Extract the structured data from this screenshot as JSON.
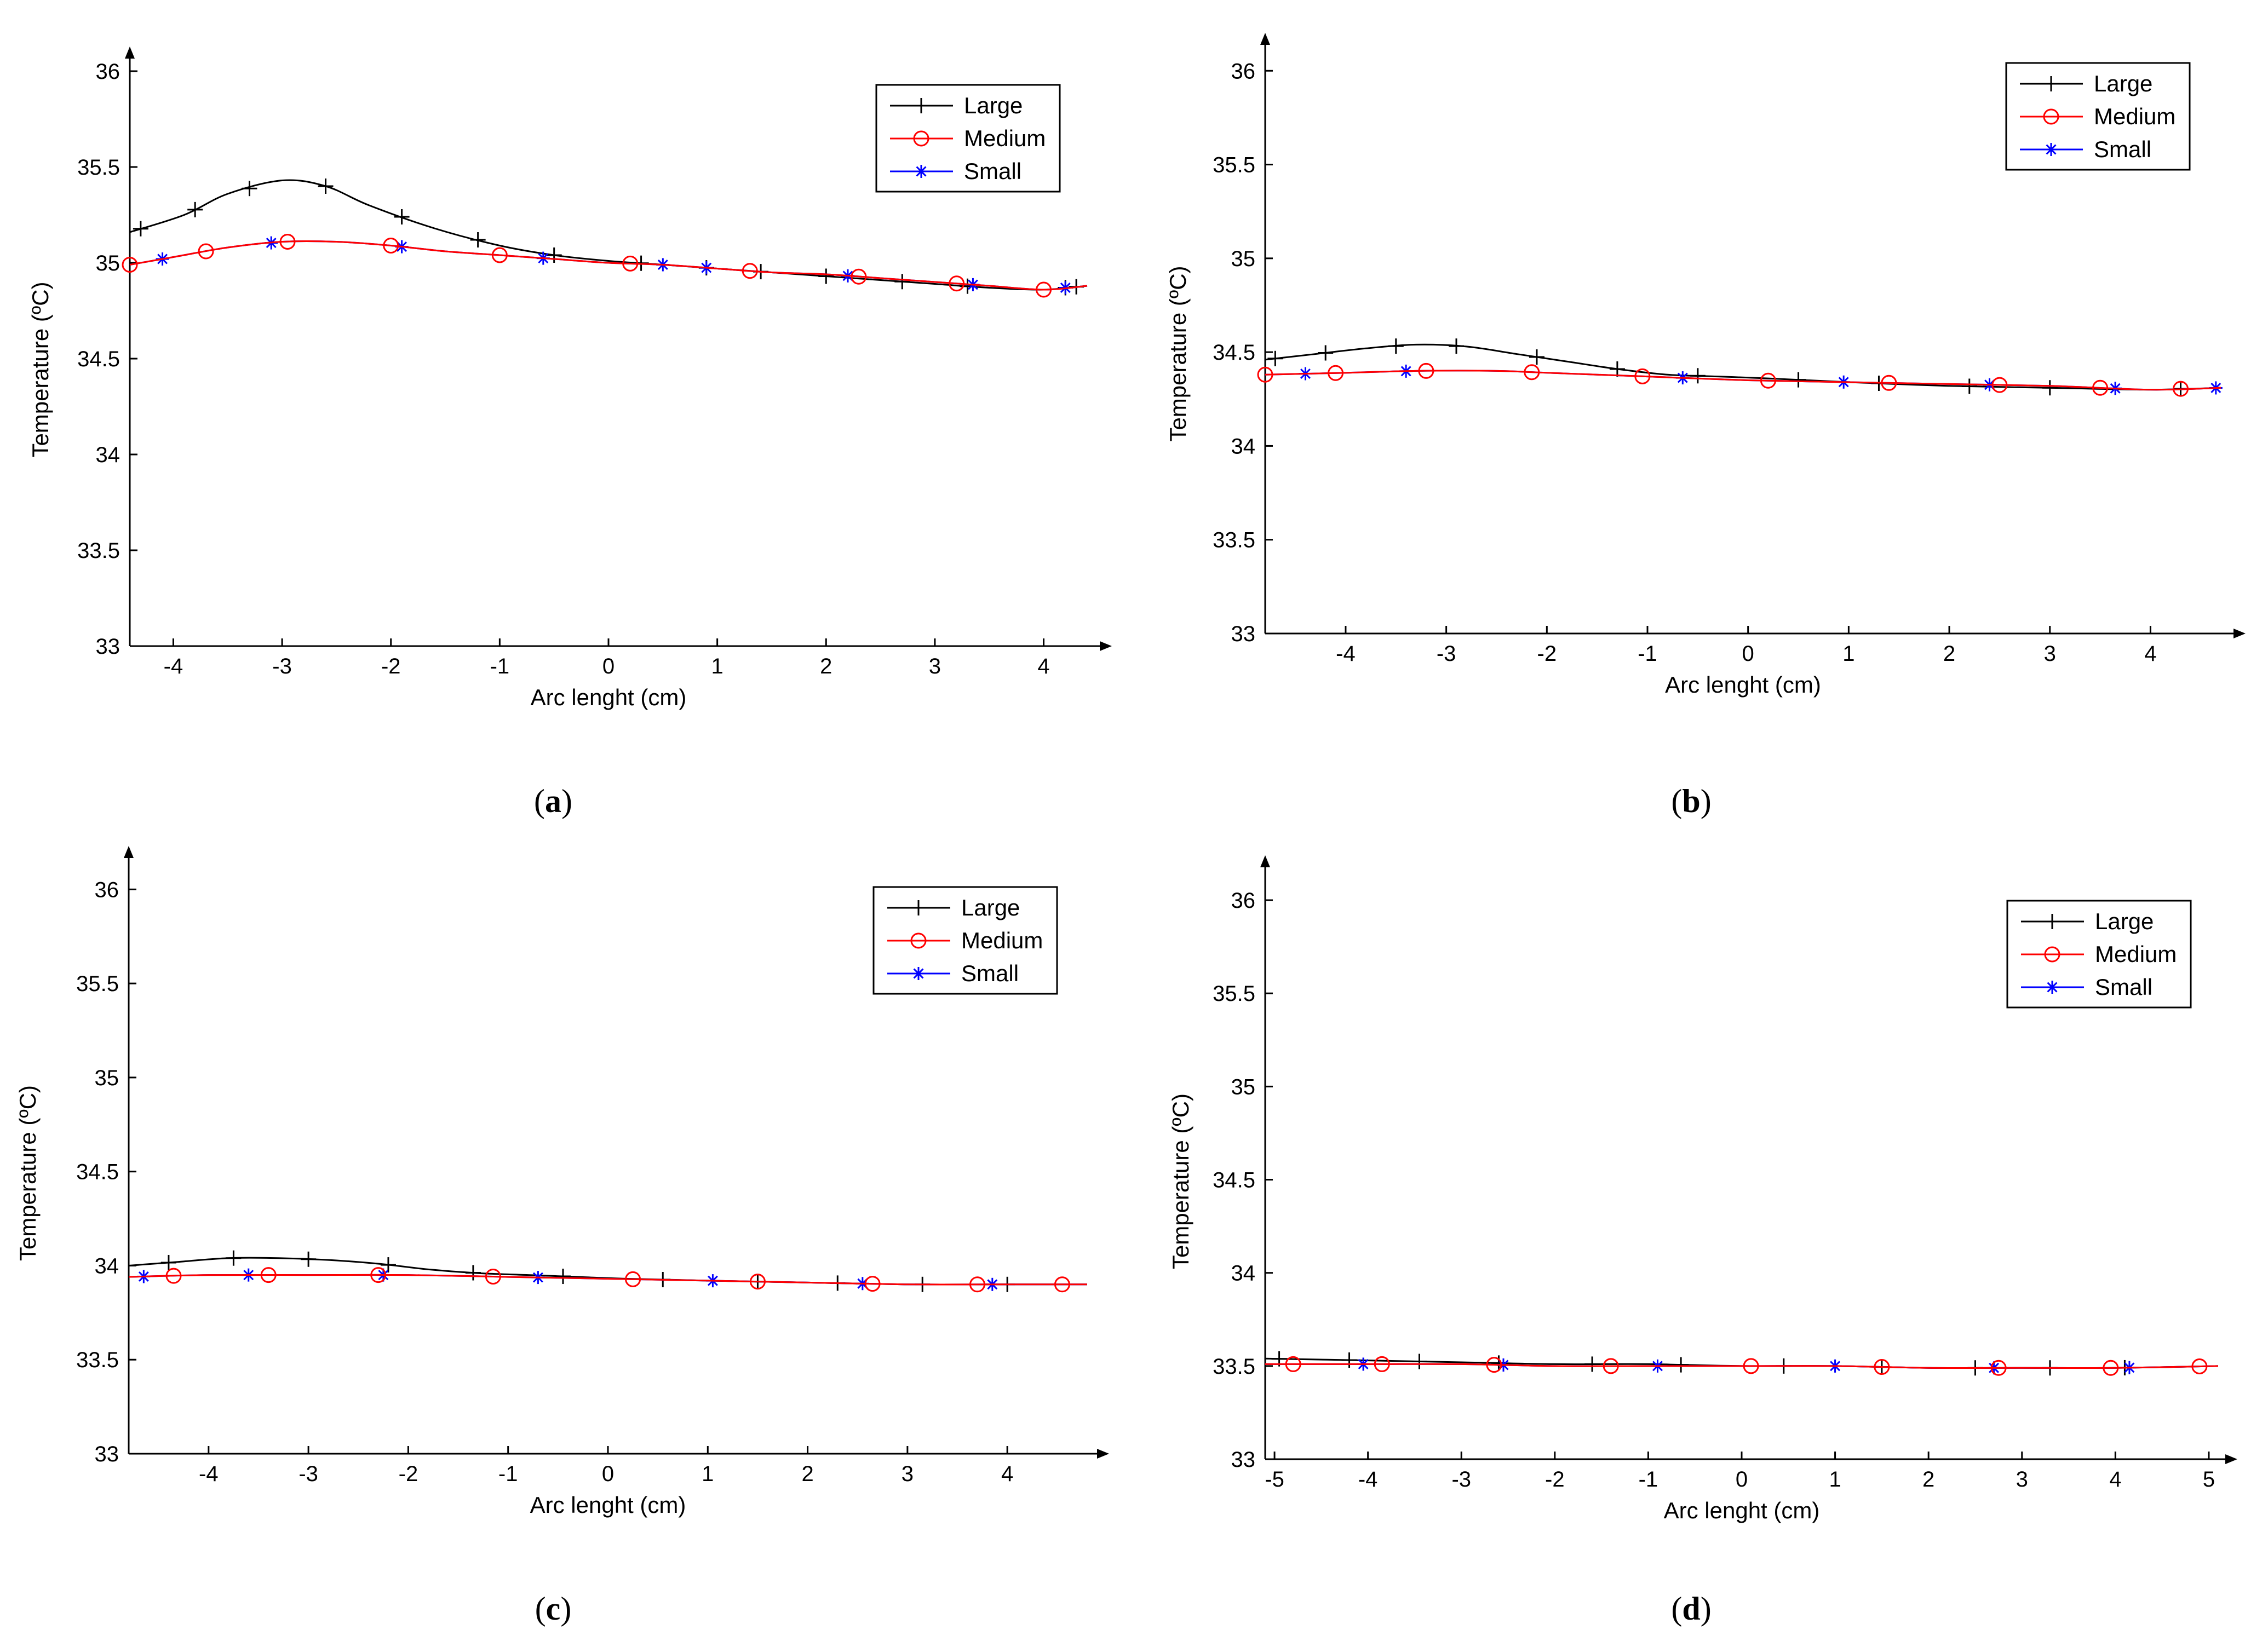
{
  "colors": {
    "Large": "#000000",
    "Medium": "#ff0000",
    "Small": "#0000ff"
  },
  "chart_data": [
    {
      "type": "line",
      "caption_letter": "a",
      "xlabel": "Arc lenght (cm)",
      "ylabel": "Temperature (ºC)",
      "xlim": [
        -4.4,
        4.4
      ],
      "ylim": [
        33,
        36
      ],
      "xticks": [
        -4,
        -3,
        -2,
        -1,
        0,
        1,
        2,
        3,
        4
      ],
      "xtick_labels": [
        "-4",
        "-3",
        "-2",
        "-1",
        "0",
        "1",
        "2",
        "3",
        "4"
      ],
      "yticks": [
        33,
        33.5,
        34,
        34.5,
        35,
        35.5,
        36
      ],
      "ytick_labels": [
        "33",
        "33.5",
        "34",
        "34.5",
        "35",
        "35.5",
        "36"
      ],
      "legend": [
        "Large",
        "Medium",
        "Small"
      ],
      "series": [
        {
          "name": "Large",
          "x": [
            -4.4,
            -3.9,
            -3.5,
            -3.0,
            -2.6,
            -2.2,
            -1.6,
            -1.0,
            -0.5,
            0.0,
            0.5,
            1.0,
            1.5,
            2.0,
            2.5,
            3.0,
            3.5,
            4.0,
            4.4
          ],
          "y": [
            35.16,
            35.25,
            35.36,
            35.43,
            35.4,
            35.3,
            35.18,
            35.09,
            35.04,
            35.01,
            34.99,
            34.97,
            34.95,
            34.93,
            34.91,
            34.89,
            34.87,
            34.86,
            34.88
          ],
          "markers_x": [
            -4.3,
            -3.8,
            -3.3,
            -2.6,
            -1.9,
            -1.2,
            -0.5,
            0.3,
            0.9,
            1.4,
            2.0,
            2.7,
            3.3,
            4.2,
            4.3
          ]
        },
        {
          "name": "Medium",
          "x": [
            -4.4,
            -4.0,
            -3.5,
            -3.0,
            -2.5,
            -2.0,
            -1.5,
            -1.0,
            -0.5,
            0.0,
            0.5,
            1.0,
            1.5,
            2.0,
            2.5,
            3.0,
            3.5,
            4.0,
            4.4
          ],
          "y": [
            34.99,
            35.03,
            35.08,
            35.11,
            35.11,
            35.09,
            35.06,
            35.04,
            35.02,
            35.0,
            34.99,
            34.97,
            34.95,
            34.94,
            34.92,
            34.9,
            34.88,
            34.86,
            34.88
          ],
          "markers_x": [
            -4.4,
            -3.7,
            -2.95,
            -2.0,
            -1.0,
            0.2,
            1.3,
            2.3,
            3.2,
            4.0
          ]
        },
        {
          "name": "Small",
          "x": [
            -4.4,
            -4.0,
            -3.5,
            -3.0,
            -2.5,
            -2.0,
            -1.5,
            -1.0,
            -0.5,
            0.0,
            0.5,
            1.0,
            1.5,
            2.0,
            2.5,
            3.0,
            3.5,
            4.0,
            4.4
          ],
          "y": [
            34.99,
            35.03,
            35.08,
            35.11,
            35.11,
            35.09,
            35.06,
            35.04,
            35.02,
            35.0,
            34.99,
            34.97,
            34.95,
            34.94,
            34.92,
            34.9,
            34.88,
            34.86,
            34.88
          ],
          "markers_x": [
            -4.1,
            -3.1,
            -1.9,
            -0.6,
            0.5,
            0.9,
            2.2,
            3.35,
            4.2
          ]
        }
      ]
    },
    {
      "type": "line",
      "caption_letter": "b",
      "xlabel": "Arc lenght (cm)",
      "ylabel": "Temperature (ºC)",
      "xlim": [
        -4.8,
        4.7
      ],
      "ylim": [
        33,
        36.1
      ],
      "xticks": [
        -4,
        -3,
        -2,
        -1,
        0,
        1,
        2,
        3,
        4
      ],
      "xtick_labels": [
        "-4",
        "-3",
        "-2",
        "-1",
        "0",
        "1",
        "2",
        "3",
        "4"
      ],
      "yticks": [
        33,
        33.5,
        34,
        34.5,
        35,
        35.5,
        36
      ],
      "ytick_labels": [
        "33",
        "33.5",
        "34",
        "34.5",
        "35",
        "35.5",
        "36"
      ],
      "legend": [
        "Large",
        "Medium",
        "Small"
      ],
      "series": [
        {
          "name": "Large",
          "x": [
            -4.8,
            -4.3,
            -3.8,
            -3.3,
            -2.8,
            -2.3,
            -1.8,
            -1.3,
            -0.8,
            -0.3,
            0.2,
            1.0,
            2.0,
            3.0,
            4.0,
            4.7
          ],
          "y": [
            34.46,
            34.49,
            34.52,
            34.54,
            34.53,
            34.49,
            34.45,
            34.41,
            34.38,
            34.37,
            34.36,
            34.34,
            34.32,
            34.31,
            34.3,
            34.31
          ],
          "markers_x": [
            -4.7,
            -4.2,
            -3.5,
            -2.9,
            -2.1,
            -1.3,
            -0.5,
            0.5,
            1.3,
            2.2,
            3.0,
            4.3
          ]
        },
        {
          "name": "Medium",
          "x": [
            -4.8,
            -4.0,
            -3.3,
            -2.5,
            -2.0,
            -1.0,
            0.0,
            1.0,
            2.0,
            3.0,
            4.0,
            4.7
          ],
          "y": [
            34.38,
            34.39,
            34.4,
            34.4,
            34.39,
            34.37,
            34.35,
            34.34,
            34.33,
            34.32,
            34.3,
            34.31
          ],
          "markers_x": [
            -4.8,
            -4.1,
            -3.2,
            -2.15,
            -1.05,
            0.2,
            1.4,
            2.5,
            3.5,
            4.3
          ]
        },
        {
          "name": "Small",
          "x": [
            -4.8,
            -4.0,
            -3.3,
            -2.5,
            -2.0,
            -1.0,
            0.0,
            1.0,
            2.0,
            3.0,
            4.0,
            4.7
          ],
          "y": [
            34.38,
            34.39,
            34.4,
            34.4,
            34.39,
            34.37,
            34.35,
            34.34,
            34.33,
            34.32,
            34.3,
            34.31
          ],
          "markers_x": [
            -4.4,
            -3.4,
            -0.65,
            0.95,
            2.4,
            3.65,
            4.65
          ]
        }
      ]
    },
    {
      "type": "line",
      "caption_letter": "c",
      "xlabel": "Arc lenght (cm)",
      "ylabel": "Temperature (ºC)",
      "xlim": [
        -4.8,
        4.8
      ],
      "ylim": [
        33,
        36.1
      ],
      "xticks": [
        -4,
        -3,
        -2,
        -1,
        0,
        1,
        2,
        3,
        4
      ],
      "xtick_labels": [
        "-4",
        "-3",
        "-2",
        "-1",
        "0",
        "1",
        "2",
        "3",
        "4"
      ],
      "yticks": [
        33,
        33.5,
        34,
        34.5,
        35,
        35.5,
        36
      ],
      "ytick_labels": [
        "33",
        "33.5",
        "34",
        "34.5",
        "35",
        "35.5",
        "36"
      ],
      "legend": [
        "Large",
        "Medium",
        "Small"
      ],
      "series": [
        {
          "name": "Large",
          "x": [
            -4.8,
            -4.3,
            -3.8,
            -3.3,
            -2.8,
            -2.3,
            -1.8,
            -1.3,
            -0.8,
            -0.3,
            0.2,
            1.0,
            2.0,
            3.0,
            4.0,
            4.8
          ],
          "y": [
            34.0,
            34.02,
            34.04,
            34.04,
            34.03,
            34.01,
            33.98,
            33.96,
            33.95,
            33.94,
            33.93,
            33.92,
            33.91,
            33.9,
            33.9,
            33.9
          ],
          "markers_x": [
            -4.4,
            -3.75,
            -3.0,
            -2.2,
            -1.35,
            -0.45,
            0.55,
            1.5,
            2.3,
            3.15,
            4.0
          ]
        },
        {
          "name": "Medium",
          "x": [
            -4.8,
            -4.0,
            -3.0,
            -2.0,
            -1.0,
            0.0,
            1.0,
            2.0,
            3.0,
            4.0,
            4.8
          ],
          "y": [
            33.94,
            33.95,
            33.95,
            33.95,
            33.94,
            33.93,
            33.92,
            33.91,
            33.9,
            33.9,
            33.9
          ],
          "markers_x": [
            -4.35,
            -3.4,
            -2.3,
            -1.15,
            0.25,
            1.5,
            2.65,
            3.7,
            4.55
          ]
        },
        {
          "name": "Small",
          "x": [
            -4.8,
            -4.0,
            -3.0,
            -2.0,
            -1.0,
            0.0,
            1.0,
            2.0,
            3.0,
            4.0,
            4.8
          ],
          "y": [
            33.94,
            33.95,
            33.95,
            33.95,
            33.94,
            33.93,
            33.92,
            33.91,
            33.9,
            33.9,
            33.9
          ],
          "markers_x": [
            -4.65,
            -3.6,
            -2.25,
            -0.7,
            1.05,
            2.55,
            3.85
          ]
        }
      ]
    },
    {
      "type": "line",
      "caption_letter": "d",
      "xlabel": "Arc lenght (cm)",
      "ylabel": "Temperature (ºC)",
      "xlim": [
        -5.1,
        5.1
      ],
      "ylim": [
        33,
        36.1
      ],
      "xticks": [
        -5,
        -4,
        -3,
        -2,
        -1,
        0,
        1,
        2,
        3,
        4,
        5
      ],
      "xtick_labels": [
        "-5",
        "-4",
        "-3",
        "-2",
        "-1",
        "0",
        "1",
        "2",
        "3",
        "4",
        "5"
      ],
      "yticks": [
        33,
        33.5,
        34,
        34.5,
        35,
        35.5,
        36
      ],
      "ytick_labels": [
        "33",
        "33.5",
        "34",
        "34.5",
        "35",
        "35.5",
        "36"
      ],
      "legend": [
        "Large",
        "Medium",
        "Small"
      ],
      "series": [
        {
          "name": "Large",
          "x": [
            -5.1,
            -4.0,
            -3.0,
            -2.0,
            -1.0,
            0.0,
            1.0,
            2.0,
            3.0,
            4.0,
            5.1
          ],
          "y": [
            33.54,
            33.53,
            33.52,
            33.51,
            33.51,
            33.5,
            33.5,
            33.49,
            33.49,
            33.49,
            33.5
          ],
          "markers_x": [
            -4.95,
            -4.2,
            -3.45,
            -2.6,
            -1.6,
            -0.65,
            0.45,
            1.5,
            2.5,
            3.3,
            4.1
          ]
        },
        {
          "name": "Medium",
          "x": [
            -5.1,
            -4.0,
            -3.0,
            -2.0,
            -1.0,
            0.0,
            1.0,
            2.0,
            3.0,
            4.0,
            5.1
          ],
          "y": [
            33.51,
            33.51,
            33.51,
            33.5,
            33.5,
            33.5,
            33.5,
            33.49,
            33.49,
            33.49,
            33.5
          ],
          "markers_x": [
            -4.8,
            -3.85,
            -2.65,
            -1.4,
            0.1,
            1.5,
            2.75,
            3.95,
            4.9
          ]
        },
        {
          "name": "Small",
          "x": [
            -5.1,
            -4.0,
            -3.0,
            -2.0,
            -1.0,
            0.0,
            1.0,
            2.0,
            3.0,
            4.0,
            5.1
          ],
          "y": [
            33.51,
            33.51,
            33.51,
            33.5,
            33.5,
            33.5,
            33.5,
            33.49,
            33.49,
            33.49,
            33.5
          ],
          "markers_x": [
            -4.05,
            -2.55,
            -0.9,
            1.0,
            2.7,
            4.15
          ]
        }
      ]
    }
  ]
}
